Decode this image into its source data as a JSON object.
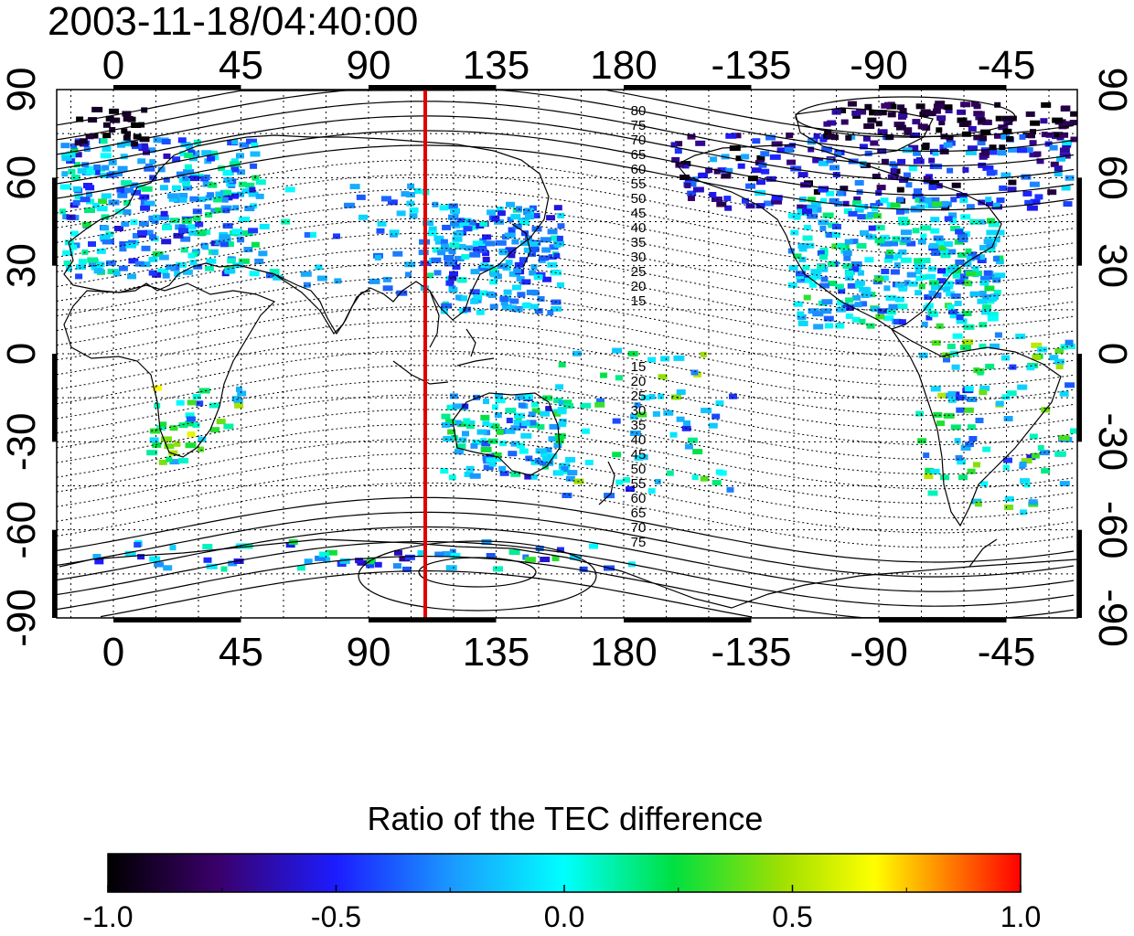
{
  "title": "2003-11-18/04:40:00",
  "map": {
    "top_lon_ticks": [
      "0",
      "45",
      "90",
      "135",
      "180",
      "-135",
      "-90",
      "-45"
    ],
    "bottom_lon_ticks": [
      "0",
      "45",
      "90",
      "135",
      "180",
      "-135",
      "-90",
      "-45"
    ],
    "left_lat_ticks": [
      "90",
      "60",
      "30",
      "0",
      "-30",
      "-60",
      "-90"
    ],
    "right_lat_ticks": [
      "90",
      "60",
      "30",
      "0",
      "-30",
      "-60",
      "-90"
    ],
    "meridian_marker_lon": 110,
    "marker_color": "#e00000",
    "contour_labels_north": [
      "80",
      "75",
      "70",
      "65",
      "60",
      "55",
      "50",
      "45",
      "40",
      "35",
      "30",
      "25",
      "20",
      "15"
    ],
    "contour_labels_south": [
      "15",
      "20",
      "25",
      "30",
      "35",
      "40",
      "45",
      "50",
      "55",
      "60",
      "65",
      "70",
      "75"
    ]
  },
  "colorbar": {
    "title": "Ratio of the TEC difference",
    "ticks": [
      "-1.0",
      "-0.5",
      "0.0",
      "0.5",
      "1.0"
    ],
    "range": [
      -1.0,
      1.0
    ],
    "colormap": "rainbow (black-purple-blue-cyan-green-yellow-red)"
  }
}
